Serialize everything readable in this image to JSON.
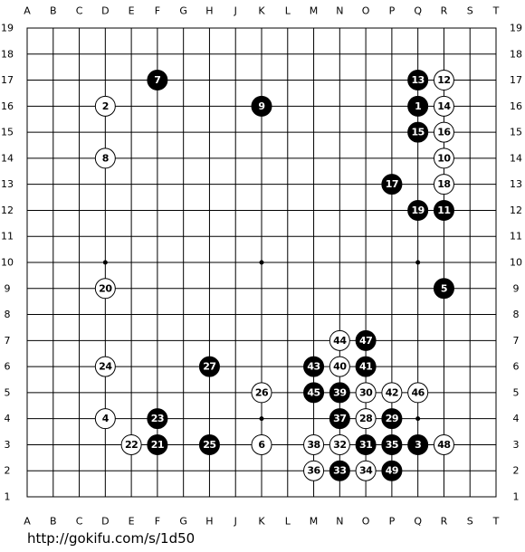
{
  "board": {
    "columns": [
      "A",
      "B",
      "C",
      "D",
      "E",
      "F",
      "G",
      "H",
      "J",
      "K",
      "L",
      "M",
      "N",
      "O",
      "P",
      "Q",
      "R",
      "S",
      "T"
    ],
    "rows": [
      19,
      18,
      17,
      16,
      15,
      14,
      13,
      12,
      11,
      10,
      9,
      8,
      7,
      6,
      5,
      4,
      3,
      2,
      1
    ],
    "stones": [
      {
        "at": "Q16",
        "color": "black",
        "label": 1
      },
      {
        "at": "D16",
        "color": "white",
        "label": 2
      },
      {
        "at": "Q3",
        "color": "black",
        "label": 3
      },
      {
        "at": "D4",
        "color": "white",
        "label": 4
      },
      {
        "at": "R9",
        "color": "black",
        "label": 5
      },
      {
        "at": "K3",
        "color": "white",
        "label": 6
      },
      {
        "at": "F17",
        "color": "black",
        "label": 7
      },
      {
        "at": "D14",
        "color": "white",
        "label": 8
      },
      {
        "at": "K16",
        "color": "black",
        "label": 9
      },
      {
        "at": "R14",
        "color": "white",
        "label": 10
      },
      {
        "at": "R12",
        "color": "black",
        "label": 11
      },
      {
        "at": "R17",
        "color": "white",
        "label": 12
      },
      {
        "at": "Q17",
        "color": "black",
        "label": 13
      },
      {
        "at": "R16",
        "color": "white",
        "label": 14
      },
      {
        "at": "Q15",
        "color": "black",
        "label": 15
      },
      {
        "at": "R15",
        "color": "white",
        "label": 16
      },
      {
        "at": "P13",
        "color": "black",
        "label": 17
      },
      {
        "at": "R13",
        "color": "white",
        "label": 18
      },
      {
        "at": "Q12",
        "color": "black",
        "label": 19
      },
      {
        "at": "D9",
        "color": "white",
        "label": 20
      },
      {
        "at": "F3",
        "color": "black",
        "label": 21
      },
      {
        "at": "E3",
        "color": "white",
        "label": 22
      },
      {
        "at": "F4",
        "color": "black",
        "label": 23
      },
      {
        "at": "D6",
        "color": "white",
        "label": 24
      },
      {
        "at": "H3",
        "color": "black",
        "label": 25
      },
      {
        "at": "K5",
        "color": "white",
        "label": 26
      },
      {
        "at": "H6",
        "color": "black",
        "label": 27
      },
      {
        "at": "O4",
        "color": "white",
        "label": 28
      },
      {
        "at": "P4",
        "color": "black",
        "label": 29
      },
      {
        "at": "O5",
        "color": "white",
        "label": 30
      },
      {
        "at": "O3",
        "color": "black",
        "label": 31
      },
      {
        "at": "N3",
        "color": "white",
        "label": 32
      },
      {
        "at": "N2",
        "color": "black",
        "label": 33
      },
      {
        "at": "O2",
        "color": "white",
        "label": 34
      },
      {
        "at": "P3",
        "color": "black",
        "label": 35
      },
      {
        "at": "M2",
        "color": "white",
        "label": 36
      },
      {
        "at": "N4",
        "color": "black",
        "label": 37
      },
      {
        "at": "M3",
        "color": "white",
        "label": 38
      },
      {
        "at": "N5",
        "color": "black",
        "label": 39
      },
      {
        "at": "N6",
        "color": "white",
        "label": 40
      },
      {
        "at": "O6",
        "color": "black",
        "label": 41
      },
      {
        "at": "P5",
        "color": "white",
        "label": 42
      },
      {
        "at": "M6",
        "color": "black",
        "label": 43
      },
      {
        "at": "N7",
        "color": "white",
        "label": 44
      },
      {
        "at": "M5",
        "color": "black",
        "label": 45
      },
      {
        "at": "Q5",
        "color": "white",
        "label": 46
      },
      {
        "at": "O7",
        "color": "black",
        "label": 47
      },
      {
        "at": "R3",
        "color": "white",
        "label": 48
      },
      {
        "at": "P2",
        "color": "black",
        "label": 49
      }
    ]
  },
  "footer": {
    "url": "http://gokifu.com/s/1d50"
  }
}
